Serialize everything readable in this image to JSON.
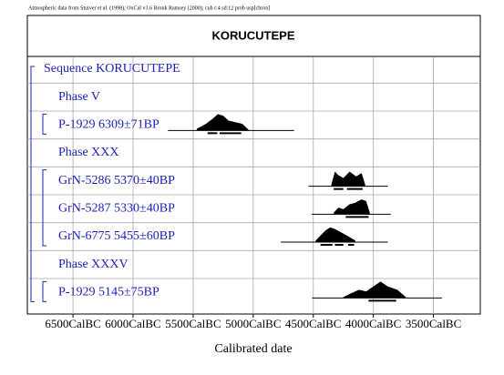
{
  "chart_data": {
    "type": "ridgeline",
    "note": "Atmospheric data from Stuiver et al. (1998); OxCal v3.6 Bronk Ramsey (2000); cub r:4 sd:12 prob usp[chron]",
    "title": "KORUCUTEPE",
    "xlabel": "Calibrated date",
    "xlim": [
      -6880,
      -3110
    ],
    "xticks": [
      {
        "value": -6500,
        "label": "6500CalBC"
      },
      {
        "value": -6000,
        "label": "6000CalBC"
      },
      {
        "value": -5500,
        "label": "5500CalBC"
      },
      {
        "value": -5000,
        "label": "5000CalBC"
      },
      {
        "value": -4500,
        "label": "4500CalBC"
      },
      {
        "value": -4000,
        "label": "4000CalBC"
      },
      {
        "value": -3500,
        "label": "3500CalBC"
      }
    ],
    "grid": true,
    "color": "#000000",
    "label_color": "#2020c0",
    "sequence": {
      "label": "Sequence KORUCUTEPE",
      "phases": [
        {
          "label": "Phase V",
          "dates": [
            {
              "label": "P-1929  6309±71BP",
              "range": [
                -5710,
                -4660
              ],
              "x": [
                -5470,
                -5395,
                -5340,
                -5295,
                -5250,
                -5205,
                -5145,
                -5090,
                -5040
              ],
              "density": [
                0.1,
                0.4,
                0.7,
                1,
                0.9,
                0.6,
                0.5,
                0.4,
                0.05
              ],
              "ranges": [
                [
                  -5380,
                  -5300
                ],
                [
                  -5280,
                  -5100
                ]
              ]
            }
          ]
        },
        {
          "label": "Phase XXX",
          "dates": [
            {
              "label": "GrN-5286  5370±40BP",
              "range": [
                -4540,
                -3880
              ],
              "x": [
                -4350,
                -4320,
                -4295,
                -4250,
                -4197,
                -4144,
                -4098,
                -4068
              ],
              "density": [
                0.1,
                0.9,
                0.7,
                0.5,
                0.9,
                0.6,
                0.8,
                0.1
              ],
              "ranges": [
                [
                  -4330,
                  -4250
                ],
                [
                  -4220,
                  -4090
                ]
              ]
            },
            {
              "label": "GrN-5287  5330±40BP",
              "range": [
                -4515,
                -3855
              ],
              "x": [
                -4330,
                -4290,
                -4250,
                -4200,
                -4150,
                -4100,
                -4060,
                -4030
              ],
              "density": [
                0.1,
                0.4,
                0.3,
                0.6,
                0.7,
                0.9,
                0.8,
                0.1
              ],
              "ranges": [
                [
                  -4230,
                  -4040
                ]
              ]
            },
            {
              "label": "GrN-6775  5455±60BP",
              "range": [
                -4770,
                -3880
              ],
              "x": [
                -4480,
                -4440,
                -4400,
                -4360,
                -4320,
                -4270,
                -4220,
                -4150
              ],
              "density": [
                0.1,
                0.4,
                0.7,
                0.9,
                0.8,
                0.6,
                0.4,
                0.1
              ],
              "ranges": [
                [
                  -4440,
                  -4340
                ],
                [
                  -4320,
                  -4250
                ],
                [
                  -4210,
                  -4160
                ]
              ]
            }
          ]
        },
        {
          "label": "Phase XXXV",
          "dates": [
            {
              "label": "P-1929  5145±75BP",
              "range": [
                -4510,
                -3430
              ],
              "x": [
                -4250,
                -4180,
                -4120,
                -4060,
                -4000,
                -3940,
                -3880,
                -3800,
                -3730
              ],
              "density": [
                0.05,
                0.3,
                0.5,
                0.4,
                0.7,
                1,
                0.7,
                0.5,
                0.05
              ],
              "ranges": [
                [
                  -4040,
                  -3810
                ]
              ]
            }
          ]
        }
      ]
    }
  }
}
